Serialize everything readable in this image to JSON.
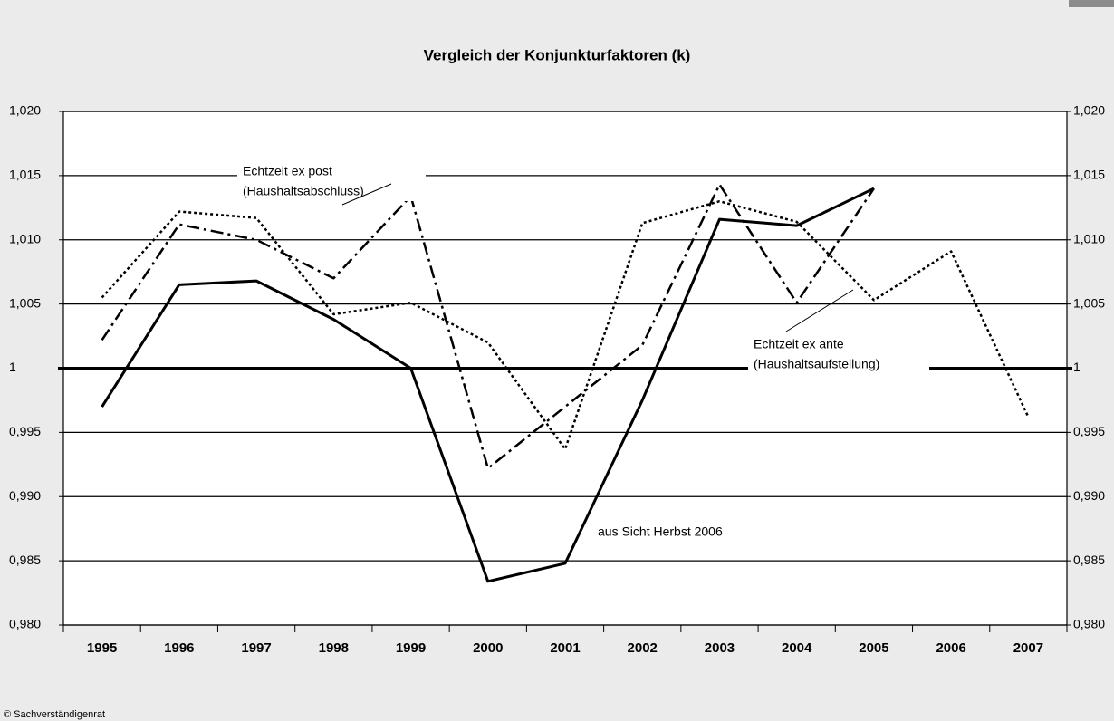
{
  "chart_data": {
    "type": "line",
    "title": "Vergleich der Konjunkturfaktoren (k)",
    "categories": [
      "1995",
      "1996",
      "1997",
      "1998",
      "1999",
      "2000",
      "2001",
      "2002",
      "2003",
      "2004",
      "2005",
      "2006",
      "2007"
    ],
    "series": [
      {
        "color": "#000000",
        "dash": "solid",
        "values": [
          0.997,
          1.0065,
          1.0068,
          1.0038,
          1.0,
          0.9834,
          0.9848,
          0.9975,
          1.0116,
          1.0111,
          1.014,
          null,
          null
        ]
      },
      {
        "color": "#000000",
        "dash": "dashdot",
        "values": [
          1.0022,
          1.0112,
          1.01,
          1.007,
          1.0134,
          0.9922,
          0.997,
          1.0018,
          1.0143,
          1.0051,
          1.014,
          null,
          null
        ]
      },
      {
        "color": "#000000",
        "dash": "dot",
        "values": [
          1.0055,
          1.0122,
          1.0117,
          1.0042,
          1.0051,
          1.002,
          0.9937,
          1.0113,
          1.013,
          1.0114,
          1.0053,
          1.0091,
          0.9962
        ]
      }
    ],
    "ylim": [
      0.98,
      1.02
    ],
    "yticks": [
      {
        "value": 0.98,
        "label": "0,980"
      },
      {
        "value": 0.985,
        "label": "0,985"
      },
      {
        "value": 0.99,
        "label": "0,990"
      },
      {
        "value": 0.995,
        "label": "0,995"
      },
      1,
      {
        "value": 1.005,
        "label": "1,005"
      },
      {
        "value": 1.01,
        "label": "1,010"
      },
      {
        "value": 1.015,
        "label": "1,015"
      },
      {
        "value": 1.02,
        "label": "1,020"
      }
    ],
    "grid": true,
    "annotations": [
      {
        "lines": [
          "Echtzeit ex post",
          "(Haushaltsabschluss)"
        ]
      },
      {
        "lines": [
          "aus Sicht Herbst 2006"
        ]
      },
      {
        "lines": [
          "Echtzeit ex ante",
          "(Haushaltsaufstellung)"
        ]
      }
    ],
    "source": "© Sachverständigenrat"
  }
}
